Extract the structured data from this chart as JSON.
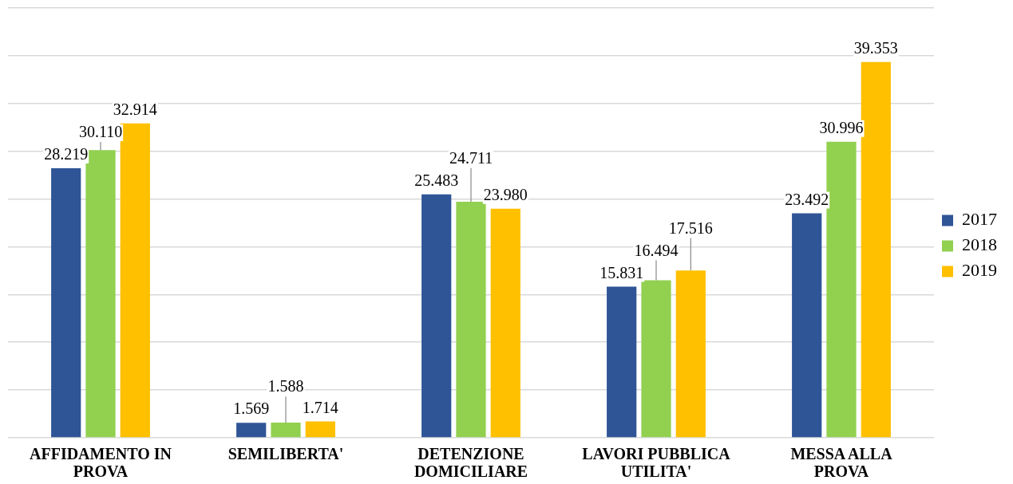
{
  "chart_data": {
    "type": "bar",
    "categories": [
      "AFFIDAMENTO IN PROVA",
      "SEMILIBERTA'",
      "DETENZIONE DOMICILIARE",
      "LAVORI PUBBLICA UTILITA'",
      "MESSA ALLA PROVA"
    ],
    "series": [
      {
        "name": "2017",
        "color": "#2f5597",
        "values": [
          28219,
          1569,
          25483,
          15831,
          23492
        ],
        "value_labels": [
          "28.219",
          "1.569",
          "25.483",
          "15.831",
          "23.492"
        ]
      },
      {
        "name": "2018",
        "color": "#92d050",
        "values": [
          30110,
          1588,
          24711,
          16494,
          30996
        ],
        "value_labels": [
          "30.110",
          "1.588",
          "24.711",
          "16.494",
          "30.996"
        ]
      },
      {
        "name": "2019",
        "color": "#ffc000",
        "values": [
          32914,
          1714,
          23980,
          17516,
          39353
        ],
        "value_labels": [
          "32.914",
          "1.714",
          "23.980",
          "17.516",
          "39.353"
        ]
      }
    ],
    "ylim": [
      0,
      45000
    ],
    "yticks": [
      0,
      5000,
      10000,
      15000,
      20000,
      25000,
      30000,
      35000,
      40000,
      45000
    ],
    "grid": "y",
    "legend": "right",
    "tick_labels": "x"
  }
}
